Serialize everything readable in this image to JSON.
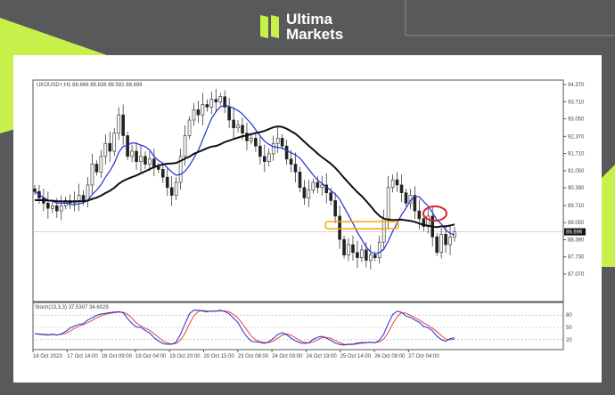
{
  "brand": {
    "name_line1": "Ultima",
    "name_line2": "Markets",
    "accent": "#c8f04a",
    "background": "#58595b"
  },
  "chart_data": {
    "type": "candlestick",
    "title": "UKOUSD+,H1  88.666 88.836 88.581 88.696",
    "ylim": [
      87.07,
      94.37
    ],
    "y_ticks": [
      "94.370",
      "93.710",
      "93.050",
      "92.370",
      "91.710",
      "91.050",
      "90.390",
      "89.710",
      "89.050",
      "88.390",
      "87.730",
      "87.070"
    ],
    "current_price": "88.696",
    "x_ticks": [
      "16 Oct 2023",
      "17 Oct 14:00",
      "18 Oct 09:00",
      "19 Oct 04:00",
      "19 Oct 20:00",
      "20 Oct 15:00",
      "23 Oct 08:00",
      "24 Oct 03:00",
      "24 Oct 19:00",
      "25 Oct 14:00",
      "26 Oct 09:00",
      "27 Oct 04:00"
    ],
    "closes": [
      90.25,
      90.0,
      89.8,
      89.6,
      89.7,
      89.5,
      89.7,
      89.9,
      89.8,
      89.9,
      90.1,
      89.9,
      90.5,
      91.3,
      91.0,
      91.6,
      92.1,
      91.8,
      92.5,
      93.2,
      92.4,
      91.6,
      91.8,
      91.4,
      91.6,
      91.3,
      91.5,
      91.2,
      91.1,
      90.8,
      90.4,
      90.1,
      90.6,
      91.6,
      92.4,
      93.0,
      93.4,
      93.2,
      93.6,
      93.5,
      93.8,
      93.7,
      93.9,
      93.5,
      93.0,
      92.7,
      92.8,
      92.5,
      92.2,
      92.3,
      92.0,
      91.6,
      91.4,
      91.7,
      92.1,
      92.3,
      92.0,
      91.5,
      91.3,
      91.0,
      90.4,
      90.0,
      90.3,
      90.6,
      90.4,
      90.5,
      90.2,
      89.9,
      89.3,
      88.4,
      87.8,
      88.2,
      87.9,
      87.7,
      88.0,
      87.6,
      87.8,
      87.7,
      88.3,
      89.2,
      90.4,
      90.7,
      90.5,
      90.2,
      89.8,
      90.1,
      89.5,
      89.2,
      88.9,
      89.3,
      88.5,
      87.9,
      88.6,
      88.2,
      88.5,
      88.7
    ],
    "moving_averages": [
      {
        "color": "#1f2fd6"
      },
      {
        "color": "#111111"
      }
    ],
    "indicator": {
      "label": "Stoch(13,3,3) 37.5307 34.6029",
      "levels": [
        "80",
        "50",
        "20"
      ],
      "main_color": "#1f2fd6",
      "signal_color": "#e8413c"
    },
    "annotations": [
      {
        "type": "box",
        "color": "#f5a800",
        "price": 88.95
      },
      {
        "type": "ellipse",
        "color": "#e0202a",
        "price": 89.4
      }
    ]
  }
}
